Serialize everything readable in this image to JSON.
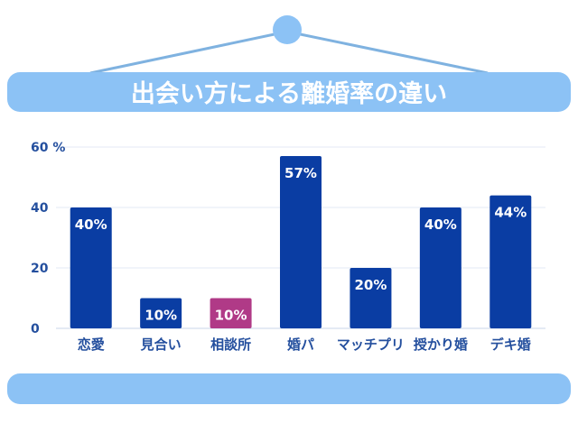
{
  "chart_data": {
    "type": "bar",
    "title": "出会い方による離婚率の違い",
    "categories": [
      "恋愛",
      "見合い",
      "相談所",
      "婚パ",
      "マッチプリ",
      "授かり婚",
      "デキ婚"
    ],
    "values": [
      40,
      10,
      10,
      57,
      20,
      40,
      44
    ],
    "data_labels": [
      "40%",
      "10%",
      "10%",
      "57%",
      "20%",
      "40%",
      "44%"
    ],
    "yticks": [
      "0",
      "20",
      "40",
      "60 %"
    ],
    "ylim": [
      0,
      60
    ],
    "grid": true,
    "legend": "none"
  },
  "colors": {
    "bar": "#0a3da3",
    "highlight": "#b03a87",
    "frame": "#8cc2f5",
    "frame_line": "#7fb2e0"
  },
  "highlight_index": 2
}
